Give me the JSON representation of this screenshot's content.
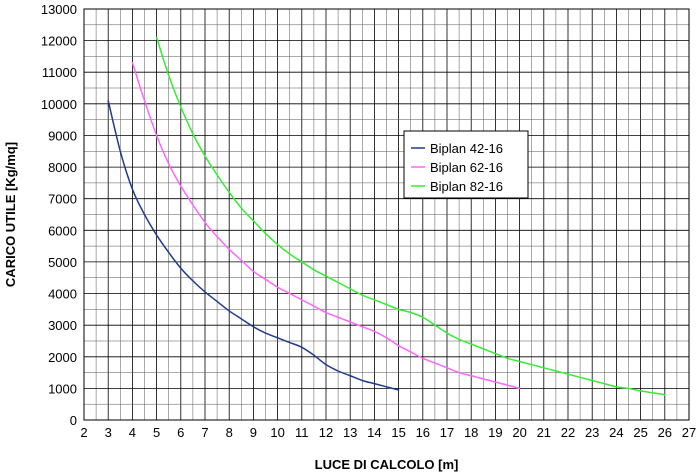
{
  "chart_data": {
    "type": "line",
    "title": "",
    "xlabel": "LUCE DI CALCOLO [m]",
    "ylabel": "CARICO UTILE [Kg/mq]",
    "xlim": [
      2,
      27
    ],
    "ylim": [
      0,
      13000
    ],
    "xticks": [
      2,
      3,
      4,
      5,
      6,
      7,
      8,
      9,
      10,
      11,
      12,
      13,
      14,
      15,
      16,
      17,
      18,
      19,
      20,
      21,
      22,
      23,
      24,
      25,
      26,
      27
    ],
    "yticks": [
      0,
      1000,
      2000,
      3000,
      4000,
      5000,
      6000,
      7000,
      8000,
      9000,
      10000,
      11000,
      12000,
      13000
    ],
    "x_minor_step": 0.5,
    "grid": true,
    "legend_position": "center-right",
    "series": [
      {
        "name": "Biplan 42-16",
        "color": "#1f3b8c",
        "x": [
          3,
          3.5,
          4,
          4.5,
          5,
          5.5,
          6,
          6.5,
          7,
          7.5,
          8,
          8.5,
          9,
          9.5,
          10,
          10.5,
          11,
          11.5,
          12,
          12.5,
          13,
          13.5,
          14,
          14.5,
          15
        ],
        "y": [
          10100,
          8500,
          7300,
          6500,
          5850,
          5300,
          4800,
          4400,
          4050,
          3750,
          3450,
          3200,
          2950,
          2750,
          2600,
          2450,
          2300,
          2050,
          1750,
          1550,
          1400,
          1250,
          1150,
          1050,
          950
        ]
      },
      {
        "name": "Biplan 62-16",
        "color": "#ff66ff",
        "x": [
          4,
          4.5,
          5,
          5.5,
          6,
          6.5,
          7,
          7.5,
          8,
          8.5,
          9,
          9.5,
          10,
          10.5,
          11,
          11.5,
          12,
          12.5,
          13,
          13.5,
          14,
          14.5,
          15,
          15.5,
          16,
          16.5,
          17,
          17.5,
          18,
          18.5,
          19,
          19.5,
          20
        ],
        "y": [
          11300,
          10100,
          9000,
          8100,
          7400,
          6800,
          6250,
          5800,
          5400,
          5050,
          4700,
          4450,
          4200,
          4000,
          3800,
          3600,
          3400,
          3250,
          3100,
          2950,
          2800,
          2600,
          2350,
          2150,
          1950,
          1800,
          1650,
          1500,
          1400,
          1300,
          1200,
          1100,
          1000
        ]
      },
      {
        "name": "Biplan 82-16",
        "color": "#33ee33",
        "x": [
          5,
          5.5,
          6,
          6.5,
          7,
          7.5,
          8,
          8.5,
          9,
          9.5,
          10,
          10.5,
          11,
          11.5,
          12,
          12.5,
          13,
          13.5,
          14,
          14.5,
          15,
          15.5,
          16,
          16.5,
          17,
          17.5,
          18,
          18.5,
          19,
          19.5,
          20,
          20.5,
          21,
          21.5,
          22,
          22.5,
          23,
          23.5,
          24,
          24.5,
          25,
          25.5,
          26
        ],
        "y": [
          12100,
          10900,
          9900,
          9050,
          8350,
          7750,
          7200,
          6700,
          6300,
          5900,
          5550,
          5250,
          5000,
          4750,
          4550,
          4350,
          4150,
          3950,
          3800,
          3650,
          3500,
          3400,
          3250,
          3000,
          2750,
          2550,
          2400,
          2250,
          2100,
          1950,
          1850,
          1750,
          1650,
          1550,
          1450,
          1350,
          1250,
          1150,
          1050,
          1000,
          920,
          860,
          800
        ]
      }
    ]
  }
}
